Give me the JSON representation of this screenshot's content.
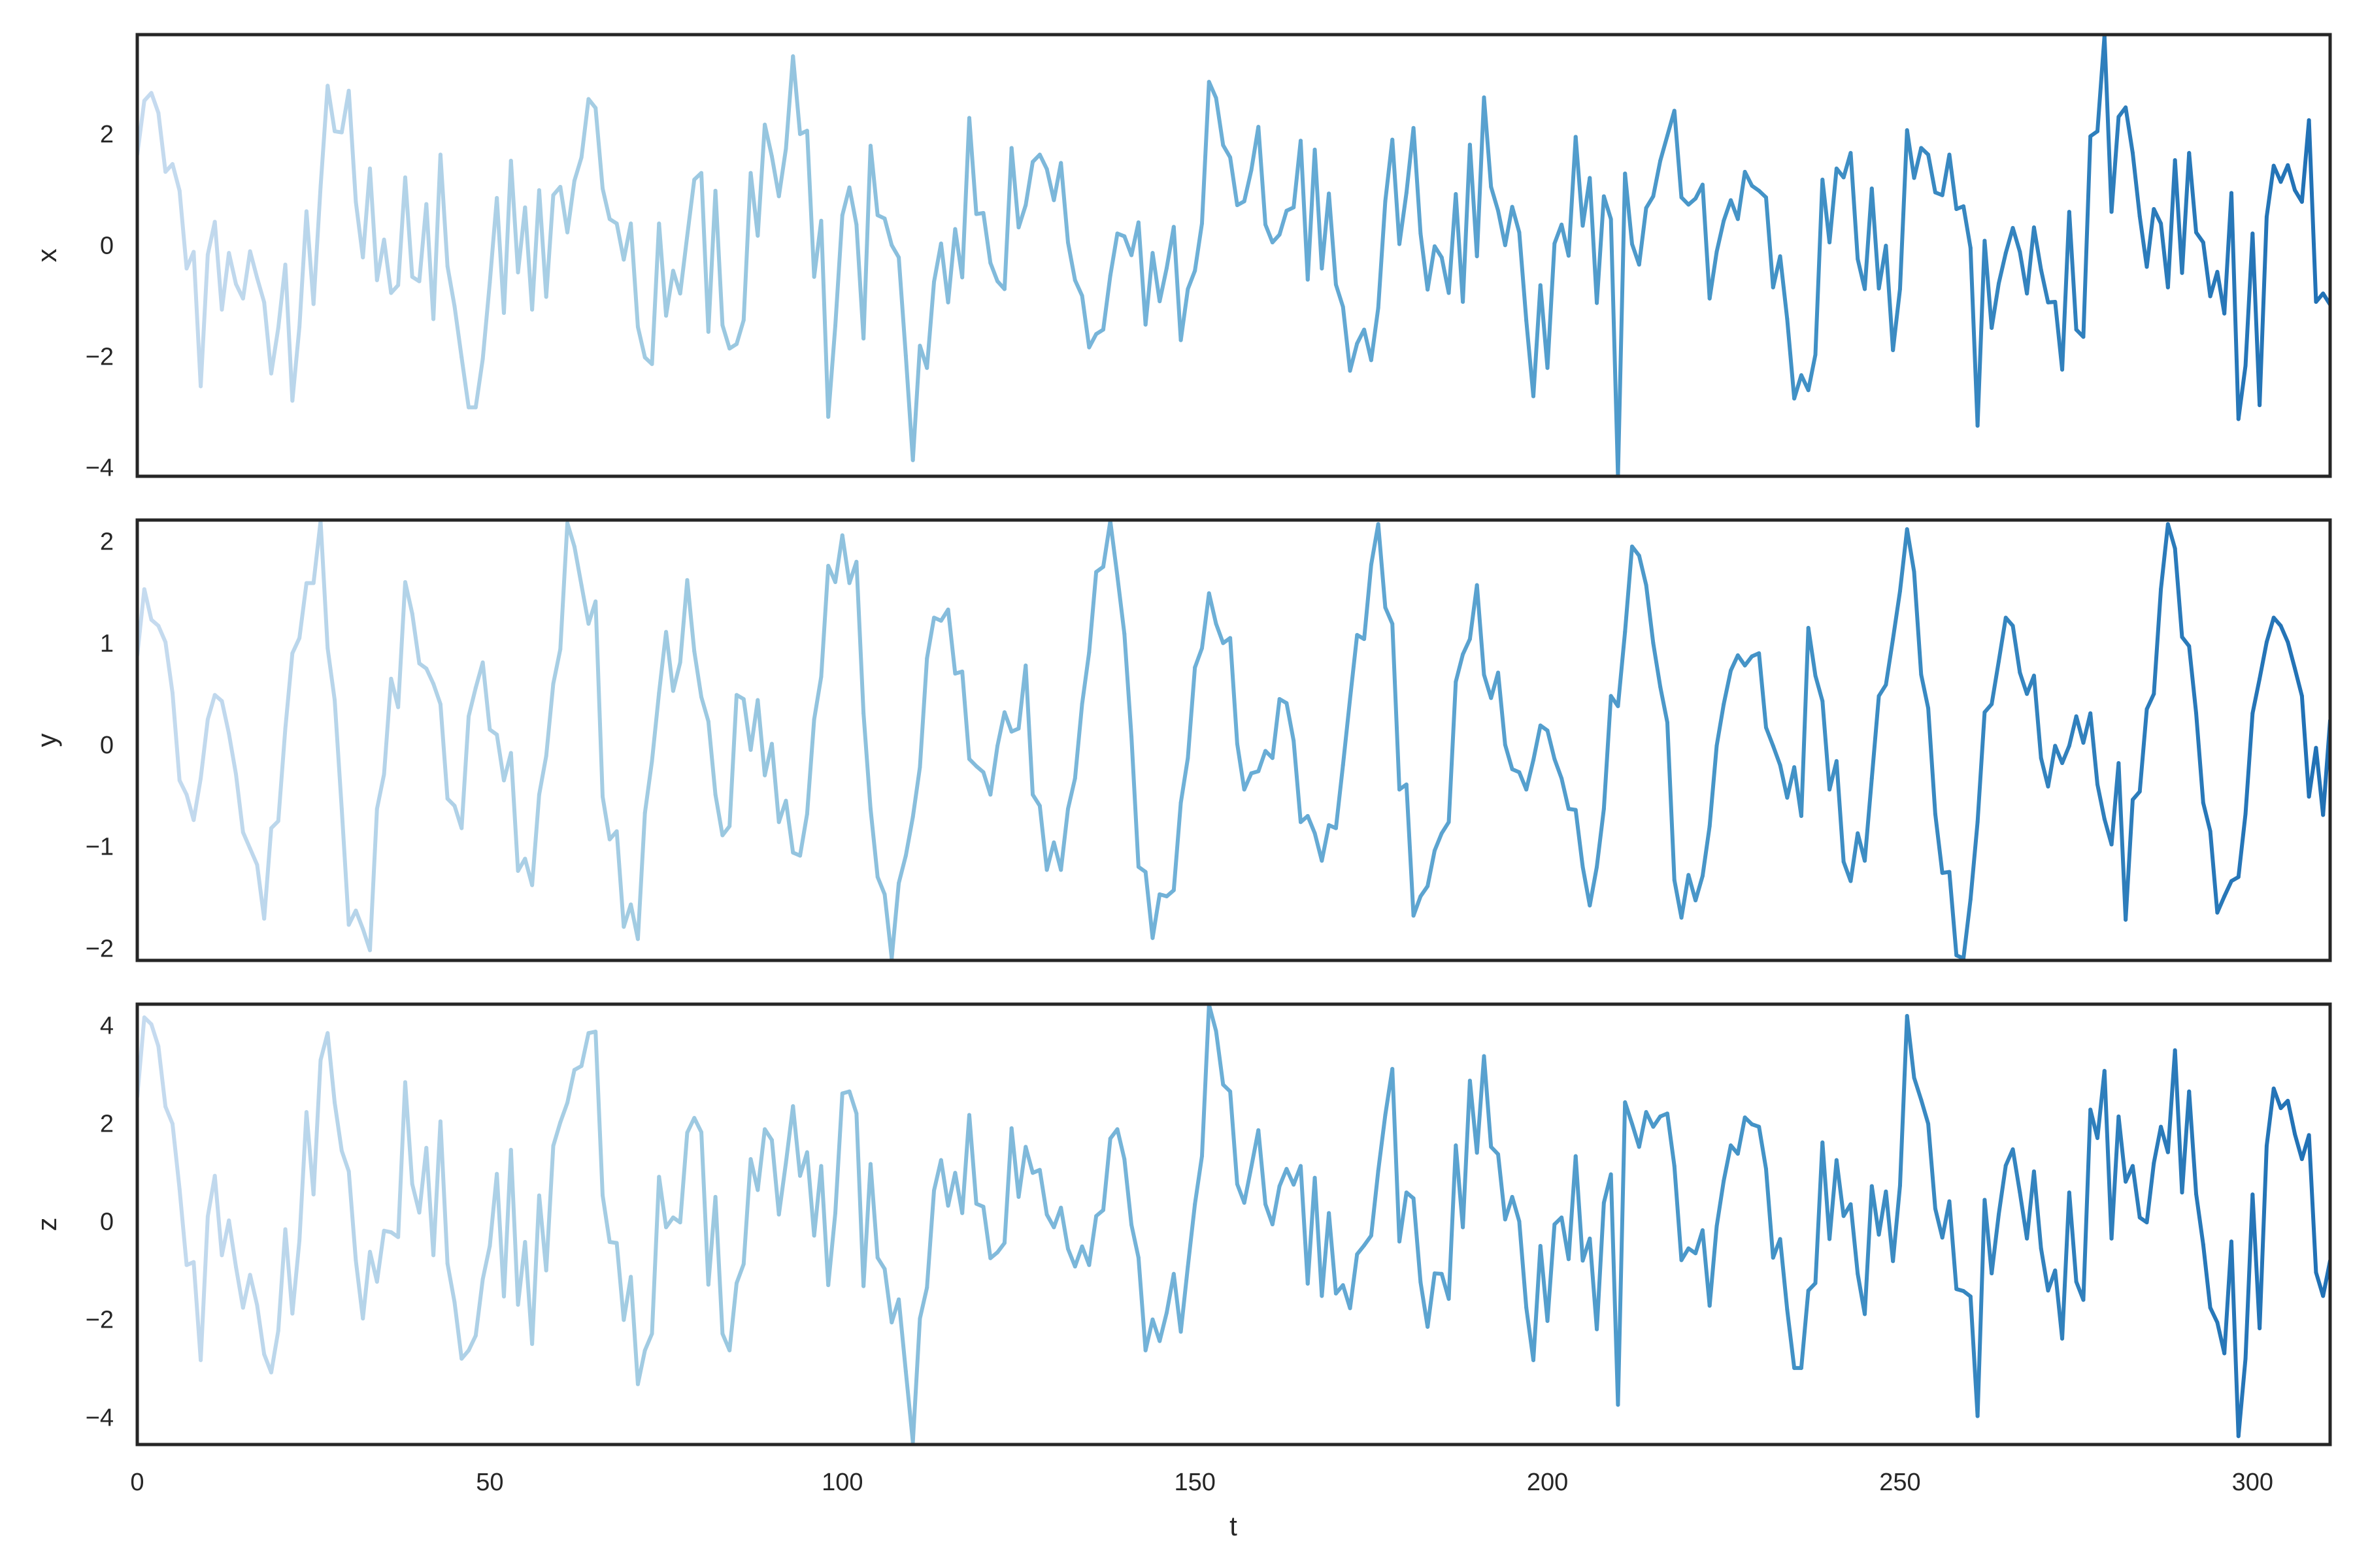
{
  "chart_data": [
    {
      "type": "line",
      "ylabel": "x",
      "xlabel": "",
      "xlim": [
        0,
        311
      ],
      "ylim": [
        -4.16,
        3.79
      ],
      "yticks": [
        -4,
        -2,
        0,
        2
      ],
      "ytick_labels": [
        "−4",
        "−2",
        "0",
        "2"
      ],
      "grid": false,
      "colormap": "Blues (light to dark along t)",
      "values": [
        1.63,
        2.6,
        2.74,
        2.38,
        1.32,
        1.46,
        0.98,
        -0.42,
        -0.12,
        -2.54,
        -0.17,
        0.42,
        -1.16,
        -0.14,
        -0.7,
        -0.96,
        -0.11,
        -0.59,
        -1.03,
        -2.31,
        -1.49,
        -0.35,
        -2.8,
        -1.47,
        0.61,
        -1.06,
        1.05,
        2.87,
        2.05,
        2.03,
        2.78,
        0.78,
        -0.22,
        1.38,
        -0.63,
        0.1,
        -0.86,
        -0.72,
        1.22,
        -0.57,
        -0.65,
        0.74,
        -1.33,
        1.63,
        -0.38,
        -1.1,
        -2.02,
        -2.92,
        -2.92,
        -2.05,
        -0.67,
        0.85,
        -1.22,
        1.52,
        -0.49,
        0.68,
        -1.16,
        0.99,
        -0.93,
        0.9,
        1.05,
        0.23,
        1.16,
        1.58,
        2.63,
        2.47,
        1.02,
        0.47,
        0.39,
        -0.26,
        0.39,
        -1.47,
        -2.02,
        -2.14,
        0.39,
        -1.27,
        -0.46,
        -0.87,
        0.17,
        1.18,
        1.3,
        -1.56,
        0.98,
        -1.44,
        -1.86,
        -1.78,
        -1.35,
        1.3,
        0.17,
        2.17,
        1.6,
        0.88,
        1.74,
        3.4,
        2.0,
        2.06,
        -0.57,
        0.44,
        -3.09,
        -1.45,
        0.54,
        1.04,
        0.37,
        -1.68,
        1.79,
        0.54,
        0.48,
        0.0,
        -0.22,
        -1.99,
        -3.87,
        -1.81,
        -2.21,
        -0.66,
        0.03,
        -1.03,
        0.29,
        -0.58,
        2.29,
        0.56,
        0.58,
        -0.32,
        -0.65,
        -0.79,
        1.75,
        0.32,
        0.72,
        1.5,
        1.63,
        1.37,
        0.81,
        1.48,
        0.05,
        -0.63,
        -0.91,
        -1.84,
        -1.6,
        -1.52,
        -0.55,
        0.21,
        0.16,
        -0.18,
        0.41,
        -1.43,
        -0.14,
        -1.01,
        -0.41,
        0.33,
        -1.71,
        -0.79,
        -0.46,
        0.39,
        2.94,
        2.65,
        1.8,
        1.58,
        0.72,
        0.79,
        1.35,
        2.13,
        0.37,
        0.05,
        0.19,
        0.62,
        0.68,
        1.88,
        -0.62,
        1.72,
        -0.42,
        0.93,
        -0.71,
        -1.11,
        -2.26,
        -1.77,
        -1.52,
        -2.07,
        -1.13,
        0.79,
        1.9,
        0.02,
        0.94,
        2.11,
        0.21,
        -0.8,
        -0.02,
        -0.22,
        -0.86,
        0.92,
        -1.02,
        1.81,
        -0.2,
        2.66,
        1.05,
        0.62,
        0.0,
        0.69,
        0.23,
        -1.36,
        -2.72,
        -0.72,
        -2.21,
        0.03,
        0.37,
        -0.19,
        1.95,
        0.35,
        1.21,
        -1.04,
        0.88,
        0.47,
        -4.16,
        1.29,
        0.02,
        -0.35,
        0.67,
        0.88,
        1.52,
        1.97,
        2.42,
        0.86,
        0.73,
        0.84,
        1.09,
        -0.96,
        -0.12,
        0.44,
        0.81,
        0.47,
        1.32,
        1.07,
        0.98,
        0.86,
        -0.76,
        -0.2,
        -1.33,
        -2.76,
        -2.34,
        -2.61,
        -1.97,
        1.18,
        0.05,
        1.38,
        1.22,
        1.66,
        -0.25,
        -0.79,
        1.02,
        -0.78,
        -0.01,
        -1.89,
        -0.79,
        2.07,
        1.21,
        1.75,
        1.63,
        0.95,
        0.9,
        1.63,
        0.65,
        0.7,
        -0.05,
        -3.25,
        0.08,
        -1.49,
        -0.69,
        -0.14,
        0.31,
        -0.12,
        -0.87,
        0.32,
        -0.44,
        -1.03,
        -1.02,
        -2.24,
        0.6,
        -1.52,
        -1.65,
        1.96,
        2.05,
        3.77,
        0.6,
        2.31,
        2.48,
        1.66,
        0.52,
        -0.39,
        0.65,
        0.39,
        -0.76,
        1.53,
        -0.5,
        1.66,
        0.23,
        0.05,
        -0.92,
        -0.48,
        -1.23,
        0.94,
        -3.13,
        -2.17,
        0.21,
        -2.88,
        0.51,
        1.43,
        1.14,
        1.44,
        0.99,
        0.78,
        2.25,
        -1.02,
        -0.87,
        -1.07
      ]
    },
    {
      "type": "line",
      "ylabel": "y",
      "xlabel": "",
      "xlim": [
        0,
        311
      ],
      "ylim": [
        -2.12,
        2.21
      ],
      "yticks": [
        -2,
        -1,
        0,
        1,
        2
      ],
      "ytick_labels": [
        "−2",
        "−1",
        "0",
        "1",
        "2"
      ],
      "grid": false,
      "colormap": "Blues (light to dark along t)",
      "values": [
        0.88,
        1.53,
        1.23,
        1.17,
        1.01,
        0.51,
        -0.35,
        -0.49,
        -0.74,
        -0.33,
        0.25,
        0.49,
        0.43,
        0.11,
        -0.29,
        -0.86,
        -1.02,
        -1.18,
        -1.71,
        -0.82,
        -0.75,
        0.16,
        0.9,
        1.05,
        1.59,
        1.59,
        2.2,
        0.95,
        0.44,
        -0.63,
        -1.77,
        -1.63,
        -1.81,
        -2.02,
        -0.63,
        -0.29,
        0.65,
        0.37,
        1.6,
        1.29,
        0.8,
        0.75,
        0.6,
        0.4,
        -0.53,
        -0.6,
        -0.82,
        0.28,
        0.56,
        0.81,
        0.15,
        0.1,
        -0.35,
        -0.08,
        -1.24,
        -1.12,
        -1.38,
        -0.49,
        -0.11,
        0.6,
        0.94,
        2.18,
        1.95,
        1.57,
        1.19,
        1.41,
        -0.51,
        -0.93,
        -0.85,
        -1.79,
        -1.57,
        -1.91,
        -0.67,
        -0.16,
        0.51,
        1.11,
        0.53,
        0.81,
        1.62,
        0.92,
        0.47,
        0.23,
        -0.49,
        -0.89,
        -0.8,
        0.49,
        0.45,
        -0.05,
        0.44,
        -0.3,
        0.01,
        -0.76,
        -0.55,
        -1.06,
        -1.09,
        -0.68,
        0.25,
        0.67,
        1.76,
        1.6,
        2.06,
        1.59,
        1.8,
        0.31,
        -0.63,
        -1.3,
        -1.47,
        -2.1,
        -1.36,
        -1.09,
        -0.71,
        -0.22,
        0.85,
        1.25,
        1.22,
        1.33,
        0.7,
        0.72,
        -0.14,
        -0.21,
        -0.27,
        -0.49,
        -0.01,
        0.32,
        0.13,
        0.16,
        0.78,
        -0.49,
        -0.6,
        -1.23,
        -0.96,
        -1.23,
        -0.63,
        -0.33,
        0.4,
        0.91,
        1.7,
        1.75,
        2.2,
        1.66,
        1.09,
        0.08,
        -1.2,
        -1.25,
        -1.9,
        -1.47,
        -1.49,
        -1.43,
        -0.57,
        -0.13,
        0.76,
        0.95,
        1.49,
        1.19,
        1.0,
        1.05,
        0.01,
        -0.44,
        -0.28,
        -0.26,
        -0.06,
        -0.13,
        0.45,
        0.41,
        0.04,
        -0.76,
        -0.7,
        -0.87,
        -1.14,
        -0.79,
        -0.82,
        -0.2,
        0.45,
        1.08,
        1.04,
        1.77,
        2.17,
        1.35,
        1.19,
        -0.44,
        -0.39,
        -1.68,
        -1.49,
        -1.39,
        -1.04,
        -0.87,
        -0.76,
        0.62,
        0.89,
        1.04,
        1.57,
        0.69,
        0.46,
        0.71,
        0.0,
        -0.24,
        -0.27,
        -0.44,
        -0.15,
        0.19,
        0.14,
        -0.14,
        -0.33,
        -0.63,
        -0.64,
        -1.2,
        -1.58,
        -1.2,
        -0.63,
        0.48,
        0.38,
        1.11,
        1.95,
        1.86,
        1.57,
        1.0,
        0.57,
        0.22,
        -1.33,
        -1.7,
        -1.28,
        -1.53,
        -1.29,
        -0.8,
        -0.01,
        0.4,
        0.73,
        0.88,
        0.78,
        0.87,
        0.9,
        0.17,
        -0.01,
        -0.2,
        -0.52,
        -0.22,
        -0.7,
        1.15,
        0.68,
        0.43,
        -0.44,
        -0.16,
        -1.15,
        -1.34,
        -0.87,
        -1.14,
        -0.33,
        0.48,
        0.59,
        1.04,
        1.51,
        2.12,
        1.7,
        0.69,
        0.36,
        -0.68,
        -1.26,
        -1.25,
        -2.07,
        -2.1,
        -1.52,
        -0.76,
        0.32,
        0.4,
        0.82,
        1.25,
        1.17,
        0.71,
        0.5,
        0.68,
        -0.13,
        -0.41,
        -0.01,
        -0.18,
        -0.01,
        0.28,
        0.02,
        0.31,
        -0.39,
        -0.73,
        -0.98,
        -0.18,
        -1.72,
        -0.54,
        -0.46,
        0.35,
        0.5,
        1.53,
        2.17,
        1.93,
        1.06,
        0.97,
        0.31,
        -0.57,
        -0.85,
        -1.65,
        -1.49,
        -1.34,
        -1.3,
        -0.68,
        0.31,
        0.65,
        1.01,
        1.25,
        1.17,
        1.01,
        0.75,
        0.48,
        -0.51,
        -0.03,
        -0.69,
        0.24
      ]
    },
    {
      "type": "line",
      "ylabel": "z",
      "xlabel": "t",
      "xlim": [
        0,
        311
      ],
      "ylim": [
        -4.55,
        4.43
      ],
      "yticks": [
        -4,
        -2,
        0,
        2,
        4
      ],
      "ytick_labels": [
        "−4",
        "−2",
        "0",
        "2",
        "4"
      ],
      "xticks": [
        0,
        50,
        100,
        150,
        200,
        250,
        300
      ],
      "xtick_labels": [
        "0",
        "50",
        "100",
        "150",
        "200",
        "250",
        "300"
      ],
      "grid": false,
      "colormap": "Blues (light to dark along t)",
      "values": [
        2.54,
        4.16,
        4.02,
        3.57,
        2.34,
        1.99,
        0.66,
        -0.89,
        -0.83,
        -2.83,
        0.1,
        0.93,
        -0.69,
        0.02,
        -0.93,
        -1.76,
        -1.09,
        -1.71,
        -2.71,
        -3.08,
        -2.23,
        -0.16,
        -1.88,
        -0.39,
        2.23,
        0.55,
        3.29,
        3.84,
        2.42,
        1.44,
        1.02,
        -0.8,
        -1.98,
        -0.62,
        -1.23,
        -0.19,
        -0.22,
        -0.32,
        2.84,
        0.76,
        0.18,
        1.5,
        -0.69,
        2.04,
        -0.86,
        -1.65,
        -2.8,
        -2.63,
        -2.33,
        -1.18,
        -0.5,
        0.97,
        -1.53,
        1.46,
        -1.7,
        -0.42,
        -2.5,
        0.53,
        -1.0,
        1.54,
        2.02,
        2.42,
        3.09,
        3.17,
        3.84,
        3.87,
        0.53,
        -0.42,
        -0.44,
        -2.01,
        -1.13,
        -3.32,
        -2.63,
        -2.29,
        0.91,
        -0.12,
        0.08,
        -0.02,
        1.81,
        2.11,
        1.82,
        -1.29,
        0.5,
        -2.29,
        -2.63,
        -1.26,
        -0.87,
        1.27,
        0.64,
        1.88,
        1.66,
        0.14,
        1.2,
        2.35,
        0.93,
        1.41,
        -0.29,
        1.13,
        -1.3,
        0.17,
        2.61,
        2.65,
        2.2,
        -1.32,
        1.17,
        -0.74,
        -0.97,
        -2.06,
        -1.59,
        -3.06,
        -4.5,
        -1.98,
        -1.35,
        0.63,
        1.25,
        0.32,
        0.99,
        0.17,
        2.17,
        0.36,
        0.3,
        -0.75,
        -0.63,
        -0.44,
        1.9,
        0.5,
        1.52,
        0.99,
        1.05,
        0.14,
        -0.12,
        0.28,
        -0.56,
        -0.92,
        -0.51,
        -0.89,
        0.11,
        0.23,
        1.69,
        1.88,
        1.27,
        -0.07,
        -0.74,
        -2.63,
        -2.0,
        -2.44,
        -1.86,
        -1.07,
        -2.25,
        -0.92,
        0.35,
        1.33,
        4.42,
        3.88,
        2.79,
        2.65,
        0.76,
        0.38,
        1.11,
        1.86,
        0.35,
        -0.06,
        0.72,
        1.07,
        0.75,
        1.13,
        -1.27,
        0.89,
        -1.52,
        0.17,
        -1.47,
        -1.3,
        -1.77,
        -0.67,
        -0.49,
        -0.29,
        1.03,
        2.17,
        3.11,
        -0.41,
        0.59,
        0.47,
        -1.24,
        -2.15,
        -1.06,
        -1.07,
        -1.58,
        1.55,
        -0.12,
        2.87,
        1.4,
        3.37,
        1.52,
        1.37,
        0.04,
        0.5,
        0.0,
        -1.76,
        -2.83,
        -0.5,
        -2.03,
        -0.06,
        0.08,
        -0.77,
        1.33,
        -0.8,
        -0.35,
        -2.2,
        0.38,
        0.96,
        -3.74,
        2.43,
        1.99,
        1.52,
        2.23,
        1.93,
        2.14,
        2.2,
        1.13,
        -0.79,
        -0.55,
        -0.65,
        -0.18,
        -1.72,
        -0.1,
        0.83,
        1.55,
        1.38,
        2.12,
        1.98,
        1.93,
        1.07,
        -0.74,
        -0.36,
        -1.8,
        -2.99,
        -2.99,
        -1.41,
        -1.26,
        1.61,
        -0.36,
        1.25,
        0.11,
        0.35,
        -1.07,
        -1.89,
        0.72,
        -0.27,
        0.61,
        -0.81,
        0.73,
        4.19,
        2.93,
        2.48,
        1.99,
        0.26,
        -0.33,
        0.41,
        -1.38,
        -1.42,
        -1.53,
        -3.97,
        0.44,
        -1.06,
        0.14,
        1.14,
        1.47,
        0.59,
        -0.35,
        1.02,
        -0.55,
        -1.41,
        -1.0,
        -2.39,
        0.59,
        -1.23,
        -1.6,
        2.28,
        1.7,
        3.07,
        -0.35,
        2.14,
        0.81,
        1.13,
        0.08,
        -0.02,
        1.19,
        1.93,
        1.41,
        3.49,
        0.59,
        2.65,
        0.56,
        -0.47,
        -1.76,
        -2.06,
        -2.69,
        -0.41,
        -4.38,
        -2.8,
        0.55,
        -2.18,
        1.54,
        2.71,
        2.31,
        2.46,
        1.78,
        1.27,
        1.76,
        -1.04,
        -1.52,
        -0.8
      ]
    }
  ],
  "colors": {
    "ramp": [
      "#c6dbef",
      "#9ecae1",
      "#6baed6",
      "#4292c6",
      "#2171b5"
    ],
    "frame": "#262626",
    "text": "#262626"
  }
}
